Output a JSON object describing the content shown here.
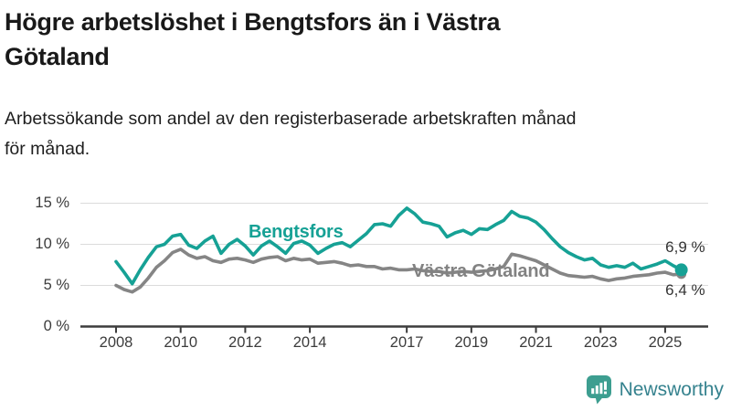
{
  "header": {
    "title": "Högre arbetslöshet i Bengtsfors än i Västra\nGötaland",
    "subtitle": "Arbetssökande som andel av den registerbaserade arbetskraften månad\nför månad."
  },
  "chart_data": {
    "type": "line",
    "x_unit": "year (monthly share of registered labour force, shown quarterly)",
    "ylim": [
      0,
      16.5
    ],
    "grid": "horizontal",
    "grid_color": "#dcdcdc",
    "axis_color": "#3c3c3c",
    "y_ticks": [
      15,
      10,
      5,
      0
    ],
    "y_tick_labels": [
      "15 %",
      "10 %",
      "5 %",
      "0 %"
    ],
    "x_ticks": [
      2008,
      2010,
      2012,
      2014,
      2017,
      2019,
      2021,
      2023,
      2025
    ],
    "x_tick_labels": [
      "2008",
      "2010",
      "2012",
      "2014",
      "2017",
      "2019",
      "2021",
      "2023",
      "2025"
    ],
    "x": [
      2008,
      2008.25,
      2008.5,
      2008.75,
      2009,
      2009.25,
      2009.5,
      2009.75,
      2010,
      2010.25,
      2010.5,
      2010.75,
      2011,
      2011.25,
      2011.5,
      2011.75,
      2012,
      2012.25,
      2012.5,
      2012.75,
      2013,
      2013.25,
      2013.5,
      2013.75,
      2014,
      2014.25,
      2014.5,
      2014.75,
      2015,
      2015.25,
      2015.5,
      2015.75,
      2016,
      2016.25,
      2016.5,
      2016.75,
      2017,
      2017.25,
      2017.5,
      2017.75,
      2018,
      2018.25,
      2018.5,
      2018.75,
      2019,
      2019.25,
      2019.5,
      2019.75,
      2020,
      2020.25,
      2020.5,
      2020.75,
      2021,
      2021.25,
      2021.5,
      2021.75,
      2022,
      2022.25,
      2022.5,
      2022.75,
      2023,
      2023.25,
      2023.5,
      2023.75,
      2024,
      2024.25,
      2024.5,
      2024.75,
      2025,
      2025.25,
      2025.5
    ],
    "series": [
      {
        "name": "Bengtsfors",
        "color": "#16a195",
        "end_label": "6,9 %",
        "end_value": 6.9,
        "values": [
          7.9,
          6.6,
          5.2,
          6.9,
          8.4,
          9.7,
          10.0,
          11.0,
          11.2,
          9.9,
          9.5,
          10.4,
          11.0,
          8.9,
          10.0,
          10.6,
          9.8,
          8.7,
          9.8,
          10.4,
          9.7,
          8.9,
          10.1,
          10.4,
          9.9,
          8.9,
          9.5,
          10.0,
          10.2,
          9.7,
          10.5,
          11.3,
          12.4,
          12.5,
          12.2,
          13.5,
          14.4,
          13.7,
          12.7,
          12.5,
          12.2,
          10.9,
          11.4,
          11.7,
          11.2,
          11.9,
          11.8,
          12.4,
          12.9,
          14.0,
          13.4,
          13.2,
          12.7,
          11.8,
          10.7,
          9.7,
          9.0,
          8.5,
          8.1,
          8.3,
          7.5,
          7.2,
          7.4,
          7.2,
          7.7,
          7.0,
          7.3,
          7.6,
          8.0,
          7.4,
          6.9
        ]
      },
      {
        "name": "Västra Götaland",
        "color": "#858585",
        "label_color": "#828282",
        "end_label": "6,4 %",
        "end_value": 6.4,
        "values": [
          5.0,
          4.5,
          4.2,
          4.8,
          5.9,
          7.2,
          8.0,
          9.0,
          9.4,
          8.7,
          8.3,
          8.5,
          8.0,
          7.8,
          8.2,
          8.3,
          8.1,
          7.8,
          8.2,
          8.4,
          8.5,
          8.0,
          8.3,
          8.1,
          8.2,
          7.7,
          7.8,
          7.9,
          7.7,
          7.4,
          7.5,
          7.3,
          7.3,
          7.0,
          7.1,
          6.9,
          6.9,
          7.0,
          6.8,
          6.7,
          6.7,
          6.5,
          6.6,
          6.7,
          6.6,
          6.7,
          6.8,
          7.0,
          7.3,
          8.8,
          8.6,
          8.3,
          8.0,
          7.5,
          7.0,
          6.5,
          6.2,
          6.1,
          6.0,
          6.1,
          5.8,
          5.6,
          5.8,
          5.9,
          6.1,
          6.2,
          6.3,
          6.5,
          6.6,
          6.3,
          6.4
        ]
      }
    ]
  },
  "footer": {
    "brand": "Newsworthy",
    "brand_color": "#35828e",
    "icon": "newsworthy-bar-chart-speech-bubble-icon",
    "icon_color": "#3d9e90"
  }
}
